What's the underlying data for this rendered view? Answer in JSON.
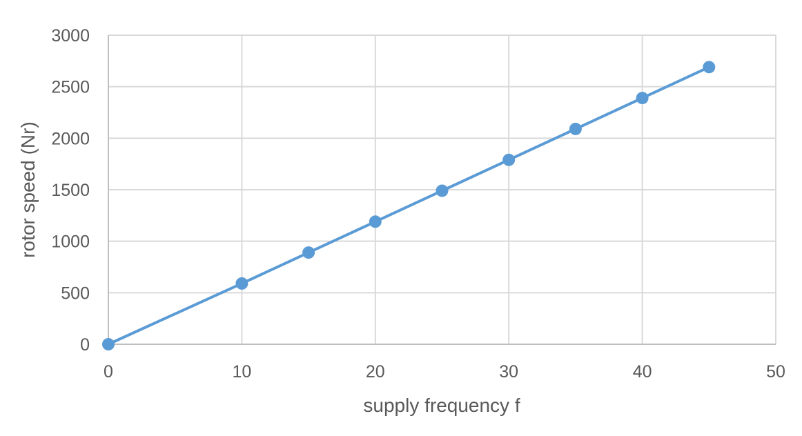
{
  "chart_data": {
    "type": "line",
    "title": "",
    "xlabel": "supply frequency f",
    "ylabel": "rotor speed (Nr)",
    "xlim": [
      0,
      50
    ],
    "ylim": [
      0,
      3000
    ],
    "xticks": [
      0,
      10,
      20,
      30,
      40,
      50
    ],
    "yticks": [
      0,
      500,
      1000,
      1500,
      2000,
      2500,
      3000
    ],
    "grid": true,
    "legend": "none",
    "series": [
      {
        "color": "#5b9bd5",
        "markers": true,
        "x": [
          0,
          10,
          15,
          20,
          25,
          30,
          35,
          40,
          45
        ],
        "y": [
          0,
          590,
          890,
          1190,
          1490,
          1790,
          2090,
          2390,
          2690
        ]
      }
    ]
  }
}
